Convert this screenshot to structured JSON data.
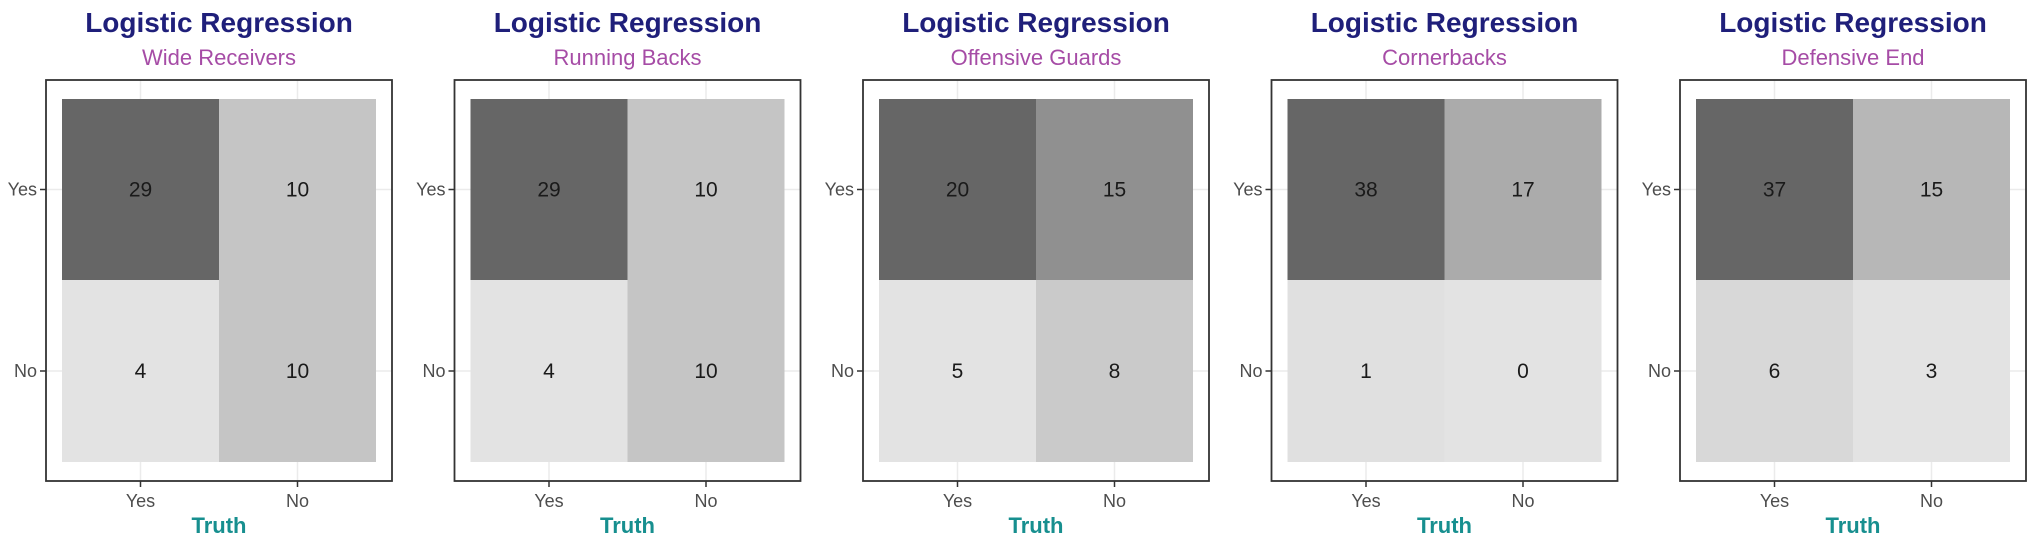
{
  "chart_data": [
    {
      "type": "heatmap",
      "title": "Logistic Regression",
      "subtitle": "Wide Receivers",
      "xlabel": "Truth",
      "ylabel": "",
      "x_categories": [
        "Yes",
        "No"
      ],
      "y_categories": [
        "Yes",
        "No"
      ],
      "cells": [
        {
          "predicted": "Yes",
          "truth": "Yes",
          "value": 29
        },
        {
          "predicted": "Yes",
          "truth": "No",
          "value": 10
        },
        {
          "predicted": "No",
          "truth": "Yes",
          "value": 4
        },
        {
          "predicted": "No",
          "truth": "No",
          "value": 10
        }
      ]
    },
    {
      "type": "heatmap",
      "title": "Logistic Regression",
      "subtitle": "Running Backs",
      "xlabel": "Truth",
      "ylabel": "",
      "x_categories": [
        "Yes",
        "No"
      ],
      "y_categories": [
        "Yes",
        "No"
      ],
      "cells": [
        {
          "predicted": "Yes",
          "truth": "Yes",
          "value": 29
        },
        {
          "predicted": "Yes",
          "truth": "No",
          "value": 10
        },
        {
          "predicted": "No",
          "truth": "Yes",
          "value": 4
        },
        {
          "predicted": "No",
          "truth": "No",
          "value": 10
        }
      ]
    },
    {
      "type": "heatmap",
      "title": "Logistic Regression",
      "subtitle": "Offensive Guards",
      "xlabel": "Truth",
      "ylabel": "",
      "x_categories": [
        "Yes",
        "No"
      ],
      "y_categories": [
        "Yes",
        "No"
      ],
      "cells": [
        {
          "predicted": "Yes",
          "truth": "Yes",
          "value": 20
        },
        {
          "predicted": "Yes",
          "truth": "No",
          "value": 15
        },
        {
          "predicted": "No",
          "truth": "Yes",
          "value": 5
        },
        {
          "predicted": "No",
          "truth": "No",
          "value": 8
        }
      ]
    },
    {
      "type": "heatmap",
      "title": "Logistic Regression",
      "subtitle": "Cornerbacks",
      "xlabel": "Truth",
      "ylabel": "",
      "x_categories": [
        "Yes",
        "No"
      ],
      "y_categories": [
        "Yes",
        "No"
      ],
      "cells": [
        {
          "predicted": "Yes",
          "truth": "Yes",
          "value": 38
        },
        {
          "predicted": "Yes",
          "truth": "No",
          "value": 17
        },
        {
          "predicted": "No",
          "truth": "Yes",
          "value": 1
        },
        {
          "predicted": "No",
          "truth": "No",
          "value": 0
        }
      ]
    },
    {
      "type": "heatmap",
      "title": "Logistic Regression",
      "subtitle": "Defensive End",
      "xlabel": "Truth",
      "ylabel": "",
      "x_categories": [
        "Yes",
        "No"
      ],
      "y_categories": [
        "Yes",
        "No"
      ],
      "cells": [
        {
          "predicted": "Yes",
          "truth": "Yes",
          "value": 37
        },
        {
          "predicted": "Yes",
          "truth": "No",
          "value": 15
        },
        {
          "predicted": "No",
          "truth": "Yes",
          "value": 6
        },
        {
          "predicted": "No",
          "truth": "No",
          "value": 3
        }
      ]
    }
  ],
  "colors": {
    "fill_low": "#e3e3e3",
    "fill_high": "#666666",
    "title": "#1f1f7a",
    "subtitle": "#a64ca6",
    "axis_title": "#178f8f"
  }
}
